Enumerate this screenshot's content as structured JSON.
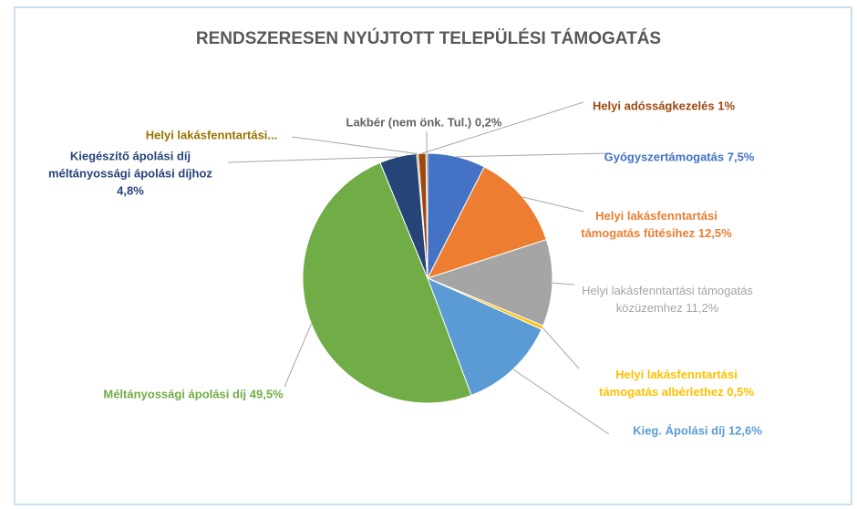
{
  "chart_data": {
    "type": "pie",
    "title": "RENDSZERESEN NYÚJTOTT TELEPÜLÉSI TÁMOGATÁS",
    "categories": [
      "Gyógyszertámogatás",
      "Helyi lakásfenntartási támogatás fűtésihez",
      "Helyi lakásfenntartási támogatás közüzemhez",
      "Helyi lakásfenntartási támogatás albérlethez",
      "Kieg. Ápolási díj",
      "Méltányossági ápolási díj",
      "Kiegészítő ápolási díj méltányossági ápolási díjhoz",
      "Helyi lakásfenntartási...",
      "Helyi adósságkezelés",
      "Lakbér (nem önk. Tul.)"
    ],
    "values": [
      7.5,
      12.5,
      11.2,
      0.5,
      12.6,
      49.5,
      4.8,
      0.2,
      1,
      0.2
    ],
    "value_labels": [
      "7,5%",
      "12,5%",
      "11,2%",
      "0,5%",
      "12,6%",
      "49,5%",
      "4,8%",
      null,
      "1%",
      "0,2%"
    ],
    "colors": [
      "#4472c4",
      "#ed7d31",
      "#a5a5a5",
      "#ffc000",
      "#5b9bd5",
      "#70ad47",
      "#264478",
      "#997300",
      "#9e480e",
      "#636363"
    ]
  }
}
